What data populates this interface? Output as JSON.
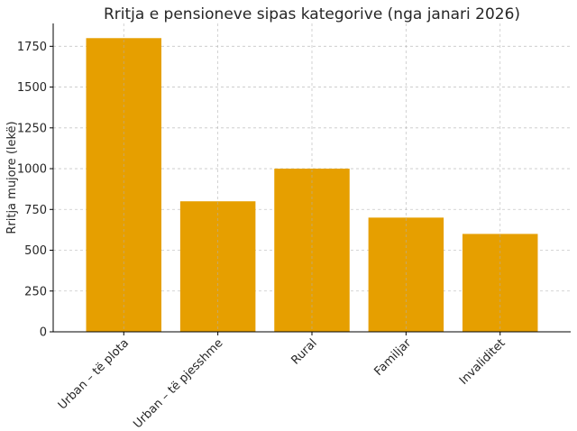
{
  "chart_data": {
    "type": "bar",
    "title": "Rritja e pensioneve sipas kategorive (nga janari 2026)",
    "xlabel": "",
    "ylabel": "Rritja mujore (lekë)",
    "categories": [
      "Urban – të plota",
      "Urban – të pjesshme",
      "Rural",
      "Familjar",
      "Invaliditet"
    ],
    "values": [
      1800,
      800,
      1000,
      700,
      600
    ],
    "ylim": [
      0,
      1890
    ],
    "yticks": [
      0,
      250,
      500,
      750,
      1000,
      1250,
      1500,
      1750
    ],
    "grid": true,
    "bar_color": "#E69F00"
  }
}
